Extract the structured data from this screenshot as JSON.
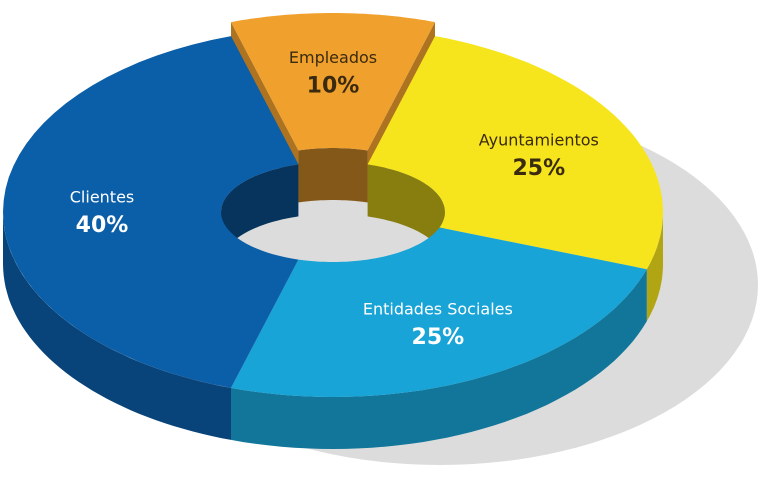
{
  "chart_data": {
    "type": "pie",
    "donut": true,
    "categories": [
      "Empleados",
      "Ayuntamientos",
      "Entidades Sociales",
      "Clientes"
    ],
    "values": [
      10,
      25,
      25,
      40
    ],
    "value_labels": [
      "10%",
      "25%",
      "25%",
      "40%"
    ],
    "colors": [
      "#f0a02c",
      "#f6e51c",
      "#18a4d6",
      "#0b5ea8"
    ]
  }
}
